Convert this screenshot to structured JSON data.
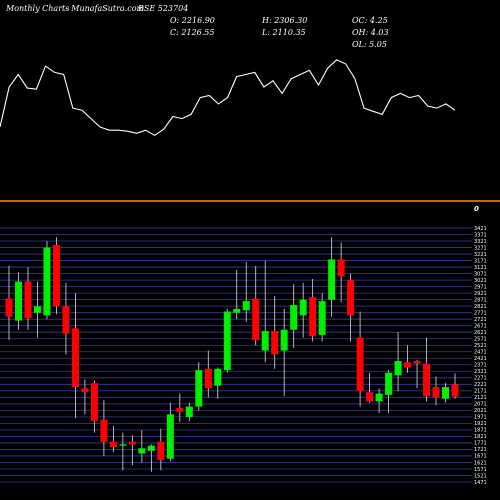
{
  "header": {
    "title": "Monthly Charts",
    "source": "- MunafaSutra.com",
    "symbol": "BSE 523704",
    "ohlc": {
      "open": "O: 2216.90",
      "close": "C: 2126.55",
      "high": "H: 2306.30",
      "low": "L: 2110.35",
      "oc": "OC: 4.25",
      "oh": "OH: 4.03",
      "ol": "OL: 5.05"
    },
    "marker": "0"
  },
  "colors": {
    "up": "#00ee00",
    "down": "#ff0000",
    "indicator_line": "#ffffff",
    "divider": "#ff8c00",
    "grid": "#3b3b9a",
    "background": "#000000"
  },
  "chart_data": [
    {
      "type": "line",
      "values": [
        60,
        98,
        110,
        97,
        96,
        118,
        112,
        110,
        78,
        76,
        68,
        60,
        57,
        57,
        56,
        54,
        57,
        52,
        58,
        70,
        68,
        72,
        88,
        90,
        82,
        88,
        108,
        110,
        112,
        98,
        104,
        92,
        106,
        110,
        114,
        100,
        116,
        124,
        120,
        106,
        78,
        75,
        72,
        88,
        92,
        88,
        90,
        80,
        78,
        82,
        76
      ]
    },
    {
      "type": "candlestick",
      "ylim": [
        1471,
        3421
      ],
      "yticks": [
        1471,
        1521,
        1571,
        1621,
        1671,
        1721,
        1771,
        1821,
        1871,
        1921,
        1971,
        2021,
        2071,
        2121,
        2171,
        2221,
        2271,
        2321,
        2371,
        2421,
        2471,
        2521,
        2571,
        2621,
        2671,
        2721,
        2771,
        2821,
        2871,
        2921,
        2971,
        3021,
        3071,
        3121,
        3171,
        3221,
        3271,
        3321,
        3371,
        3421
      ],
      "candles": [
        {
          "o": 2880,
          "h": 3130,
          "l": 2560,
          "c": 2740
        },
        {
          "o": 2710,
          "h": 3080,
          "l": 2640,
          "c": 3010
        },
        {
          "o": 3010,
          "h": 3120,
          "l": 2640,
          "c": 2730
        },
        {
          "o": 2770,
          "h": 3010,
          "l": 2580,
          "c": 2820
        },
        {
          "o": 2750,
          "h": 3320,
          "l": 2720,
          "c": 3270
        },
        {
          "o": 3290,
          "h": 3350,
          "l": 2760,
          "c": 2820
        },
        {
          "o": 2820,
          "h": 3000,
          "l": 2450,
          "c": 2610
        },
        {
          "o": 2650,
          "h": 2920,
          "l": 1960,
          "c": 2200
        },
        {
          "o": 2190,
          "h": 2260,
          "l": 1990,
          "c": 2160
        },
        {
          "o": 2230,
          "h": 2250,
          "l": 1850,
          "c": 1940
        },
        {
          "o": 1950,
          "h": 2100,
          "l": 1670,
          "c": 1780
        },
        {
          "o": 1780,
          "h": 1900,
          "l": 1700,
          "c": 1740
        },
        {
          "o": 1750,
          "h": 1850,
          "l": 1560,
          "c": 1760
        },
        {
          "o": 1780,
          "h": 1830,
          "l": 1600,
          "c": 1760
        },
        {
          "o": 1690,
          "h": 1870,
          "l": 1620,
          "c": 1730
        },
        {
          "o": 1710,
          "h": 1760,
          "l": 1550,
          "c": 1750
        },
        {
          "o": 1780,
          "h": 1880,
          "l": 1560,
          "c": 1640
        },
        {
          "o": 1650,
          "h": 2080,
          "l": 1630,
          "c": 1990
        },
        {
          "o": 2040,
          "h": 2150,
          "l": 1930,
          "c": 2010
        },
        {
          "o": 1970,
          "h": 2080,
          "l": 1940,
          "c": 2050
        },
        {
          "o": 2050,
          "h": 2390,
          "l": 2020,
          "c": 2330
        },
        {
          "o": 2340,
          "h": 2480,
          "l": 2120,
          "c": 2190
        },
        {
          "o": 2210,
          "h": 2350,
          "l": 2110,
          "c": 2340
        },
        {
          "o": 2330,
          "h": 2800,
          "l": 2310,
          "c": 2780
        },
        {
          "o": 2770,
          "h": 3100,
          "l": 2720,
          "c": 2800
        },
        {
          "o": 2790,
          "h": 3160,
          "l": 2700,
          "c": 2860
        },
        {
          "o": 2880,
          "h": 3130,
          "l": 2520,
          "c": 2560
        },
        {
          "o": 2480,
          "h": 3170,
          "l": 2390,
          "c": 2630
        },
        {
          "o": 2630,
          "h": 2900,
          "l": 2340,
          "c": 2450
        },
        {
          "o": 2480,
          "h": 2800,
          "l": 2130,
          "c": 2640
        },
        {
          "o": 2640,
          "h": 2990,
          "l": 2500,
          "c": 2830
        },
        {
          "o": 2750,
          "h": 3000,
          "l": 2580,
          "c": 2870
        },
        {
          "o": 2890,
          "h": 3030,
          "l": 2550,
          "c": 2590
        },
        {
          "o": 2600,
          "h": 2920,
          "l": 2550,
          "c": 2860
        },
        {
          "o": 2870,
          "h": 3350,
          "l": 2740,
          "c": 3180
        },
        {
          "o": 3180,
          "h": 3310,
          "l": 2850,
          "c": 3050
        },
        {
          "o": 3020,
          "h": 3070,
          "l": 2550,
          "c": 2750
        },
        {
          "o": 2580,
          "h": 2780,
          "l": 2050,
          "c": 2170
        },
        {
          "o": 2160,
          "h": 2310,
          "l": 2080,
          "c": 2090
        },
        {
          "o": 2090,
          "h": 2190,
          "l": 2000,
          "c": 2150
        },
        {
          "o": 2140,
          "h": 2330,
          "l": 2000,
          "c": 2310
        },
        {
          "o": 2290,
          "h": 2620,
          "l": 2170,
          "c": 2400
        },
        {
          "o": 2390,
          "h": 2520,
          "l": 2310,
          "c": 2350
        },
        {
          "o": 2400,
          "h": 2410,
          "l": 2190,
          "c": 2380
        },
        {
          "o": 2380,
          "h": 2580,
          "l": 2090,
          "c": 2130
        },
        {
          "o": 2200,
          "h": 2280,
          "l": 2060,
          "c": 2120
        },
        {
          "o": 2110,
          "h": 2230,
          "l": 2080,
          "c": 2200
        },
        {
          "o": 2220,
          "h": 2306,
          "l": 2110,
          "c": 2127
        }
      ]
    }
  ]
}
